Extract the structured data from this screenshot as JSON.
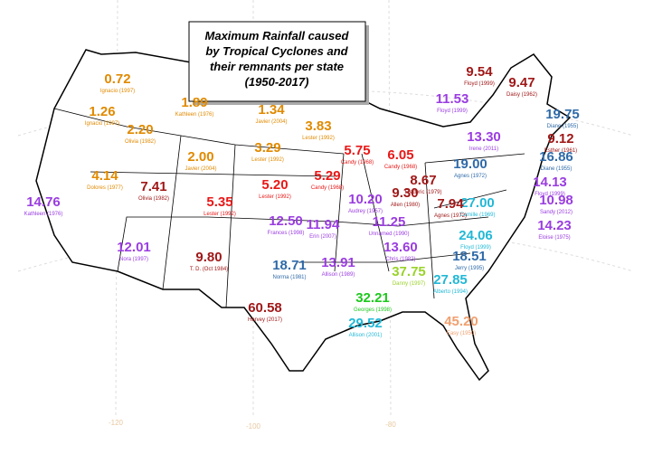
{
  "title": [
    "Maximum Rainfall caused",
    "by Tropical Cyclones and",
    "their remnants per state",
    "(1950-2017)"
  ],
  "states": [
    {
      "value": "0.72",
      "storm": "Ignacio (1997)",
      "color": "#e08a00"
    },
    {
      "value": "1.26",
      "storm": "Ignacio (1997)",
      "color": "#e08a00"
    },
    {
      "value": "2.20",
      "storm": "Olivia (1982)",
      "color": "#e08a00"
    },
    {
      "value": "1.89",
      "storm": "Kathleen (1976)",
      "color": "#e08a00"
    },
    {
      "value": "2.00",
      "storm": "Javier (2004)",
      "color": "#e08a00"
    },
    {
      "value": "1.34",
      "storm": "Javier (2004)",
      "color": "#e08a00"
    },
    {
      "value": "3.29",
      "storm": "Lester (1992)",
      "color": "#e08a00"
    },
    {
      "value": "3.83",
      "storm": "Lester (1992)",
      "color": "#e08a00"
    },
    {
      "value": "4.14",
      "storm": "Dolores (1977)",
      "color": "#e08a00"
    },
    {
      "value": "7.41",
      "storm": "Olivia (1982)",
      "color": "#a01818"
    },
    {
      "value": "14.76",
      "storm": "Kathleen (1976)",
      "color": "#9a3de0"
    },
    {
      "value": "5.35",
      "storm": "Lester (1992)",
      "color": "#e81818"
    },
    {
      "value": "5.20",
      "storm": "Lester (1992)",
      "color": "#e81818"
    },
    {
      "value": "5.75",
      "storm": "Candy (1968)",
      "color": "#e81818"
    },
    {
      "value": "6.05",
      "storm": "Candy (1968)",
      "color": "#e81818"
    },
    {
      "value": "5.29",
      "storm": "Candy (1968)",
      "color": "#e81818"
    },
    {
      "value": "10.20",
      "storm": "Audrey (1957)",
      "color": "#9a3de0"
    },
    {
      "value": "9.30",
      "storm": "Allen (1980)",
      "color": "#a01818"
    },
    {
      "value": "8.67",
      "storm": "Frederic (1979)",
      "color": "#a01818"
    },
    {
      "value": "12.50",
      "storm": "Frances (1998)",
      "color": "#9a3de0"
    },
    {
      "value": "11.94",
      "storm": "Erin (2007)",
      "color": "#9a3de0"
    },
    {
      "value": "12.01",
      "storm": "Nora (1997)",
      "color": "#9a3de0"
    },
    {
      "value": "9.80",
      "storm": "T. D. (Oct 1984)",
      "color": "#a01818"
    },
    {
      "value": "18.71",
      "storm": "Norma (1981)",
      "color": "#2f6aa8"
    },
    {
      "value": "13.91",
      "storm": "Allison (1989)",
      "color": "#9a3de0"
    },
    {
      "value": "60.58",
      "storm": "Harvey (2017)",
      "color": "#a01818"
    },
    {
      "value": "11.25",
      "storm": "Unnamed (1990)",
      "color": "#9a3de0"
    },
    {
      "value": "13.60",
      "storm": "Chris (1982)",
      "color": "#9a3de0"
    },
    {
      "value": "37.75",
      "storm": "Danny (1997)",
      "color": "#9ad22a"
    },
    {
      "value": "32.21",
      "storm": "Georges (1998)",
      "color": "#1ec81e"
    },
    {
      "value": "27.85",
      "storm": "Alberto (1994)",
      "color": "#22b8d6"
    },
    {
      "value": "29.52",
      "storm": "Allison (2001)",
      "color": "#22b8d6"
    },
    {
      "value": "45.20",
      "storm": "Easy (1950)",
      "color": "#f0a070"
    },
    {
      "value": "18.51",
      "storm": "Jerry (1995)",
      "color": "#2f6aa8"
    },
    {
      "value": "24.06",
      "storm": "Floyd (1999)",
      "color": "#22b8d6"
    },
    {
      "value": "27.00",
      "storm": "Camille (1969)",
      "color": "#22b8d6"
    },
    {
      "value": "7.94",
      "storm": "Agnes (1972)",
      "color": "#a01818"
    },
    {
      "value": "19.00",
      "storm": "Agnes (1972)",
      "color": "#2f6aa8"
    },
    {
      "value": "13.30",
      "storm": "Irene (2011)",
      "color": "#9a3de0"
    },
    {
      "value": "9.47",
      "storm": "Daisy (1962)",
      "color": "#a01818"
    },
    {
      "value": "9.54",
      "storm": "Floyd (1999)",
      "color": "#a01818"
    },
    {
      "value": "11.53",
      "storm": "Floyd (1999)",
      "color": "#9a3de0"
    },
    {
      "value": "19.75",
      "storm": "Diane (1955)",
      "color": "#2f6aa8"
    },
    {
      "value": "9.12",
      "storm": "Esther (1961)",
      "color": "#a01818"
    },
    {
      "value": "16.86",
      "storm": "Diane (1955)",
      "color": "#2f6aa8"
    },
    {
      "value": "14.13",
      "storm": "Floyd (1999)",
      "color": "#9a3de0"
    },
    {
      "value": "10.98",
      "storm": "Sandy (2012)",
      "color": "#9a3de0"
    },
    {
      "value": "14.23",
      "storm": "Eloise (1975)",
      "color": "#9a3de0"
    }
  ],
  "graticule_labels": [
    "-120",
    "-100",
    "-80"
  ]
}
